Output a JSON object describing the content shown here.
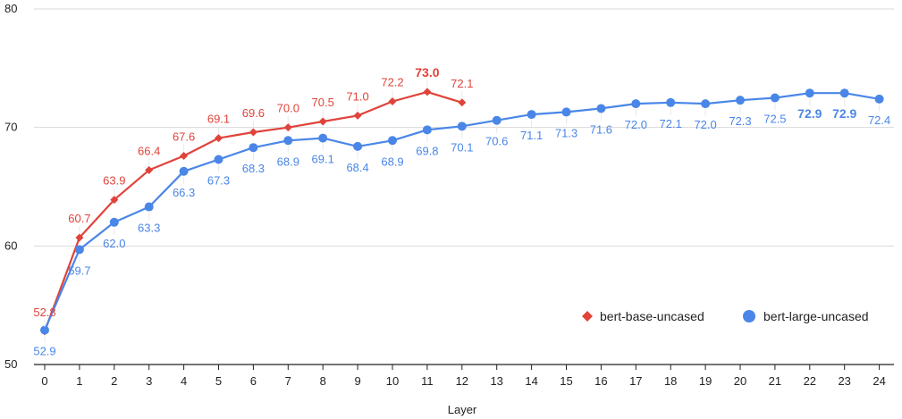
{
  "chart_data": {
    "type": "line",
    "xlabel": "Layer",
    "ylabel": "",
    "ylim": [
      50,
      80
    ],
    "yticks": [
      50,
      60,
      70,
      80
    ],
    "x": [
      0,
      1,
      2,
      3,
      4,
      5,
      6,
      7,
      8,
      9,
      10,
      11,
      12,
      13,
      14,
      15,
      16,
      17,
      18,
      19,
      20,
      21,
      22,
      23,
      24
    ],
    "grid": "horizontal",
    "legend_position": "bottom-right",
    "series": [
      {
        "name": "bert-base-uncased",
        "color": "#e0433a",
        "marker": "diamond",
        "x": [
          0,
          1,
          2,
          3,
          4,
          5,
          6,
          7,
          8,
          9,
          10,
          11,
          12
        ],
        "values": [
          52.8,
          60.7,
          63.9,
          66.4,
          67.6,
          69.1,
          69.6,
          70.0,
          70.5,
          71.0,
          72.2,
          73.0,
          72.1
        ],
        "labels": [
          "52.8",
          "60.7",
          "63.9",
          "66.4",
          "67.6",
          "69.1",
          "69.6",
          "70.0",
          "70.5",
          "71.0",
          "72.2",
          "73.0",
          "72.1"
        ],
        "label_side": "above",
        "bold_labels": [
          11
        ]
      },
      {
        "name": "bert-large-uncased",
        "color": "#4a86e8",
        "marker": "circle",
        "x": [
          0,
          1,
          2,
          3,
          4,
          5,
          6,
          7,
          8,
          9,
          10,
          11,
          12,
          13,
          14,
          15,
          16,
          17,
          18,
          19,
          20,
          21,
          22,
          23,
          24
        ],
        "values": [
          52.9,
          59.7,
          62.0,
          63.3,
          66.3,
          67.3,
          68.3,
          68.9,
          69.1,
          68.4,
          68.9,
          69.8,
          70.1,
          70.6,
          71.1,
          71.3,
          71.6,
          72.0,
          72.1,
          72.0,
          72.3,
          72.5,
          72.9,
          72.9,
          72.4
        ],
        "labels": [
          "52.9",
          "59.7",
          "62.0",
          "63.3",
          "66.3",
          "67.3",
          "68.3",
          "68.9",
          "69.1",
          "68.4",
          "68.9",
          "69.8",
          "70.1",
          "70.6",
          "71.1",
          "71.3",
          "71.6",
          "72.0",
          "72.1",
          "72.0",
          "72.3",
          "72.5",
          "72.9",
          "72.9",
          "72.4"
        ],
        "label_side": "below",
        "bold_labels": [
          22,
          23
        ]
      }
    ]
  }
}
